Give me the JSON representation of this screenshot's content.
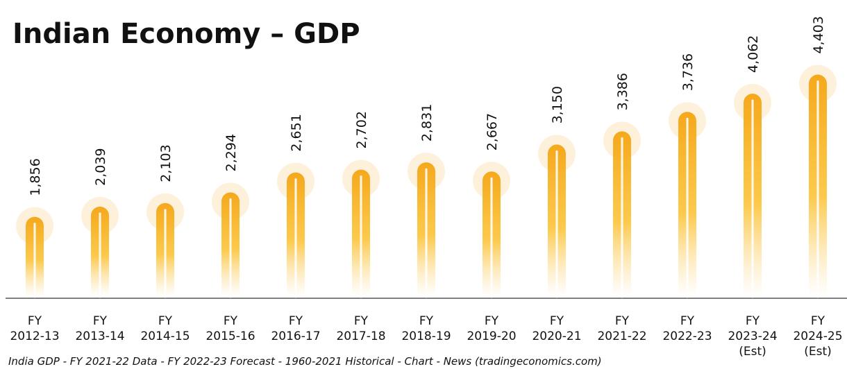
{
  "chart_data": {
    "type": "bar",
    "title": "Indian Economy – GDP",
    "categories": [
      "FY 2012-13",
      "FY 2013-14",
      "FY 2014-15",
      "FY 2015-16",
      "FY 2016-17",
      "FY 2017-18",
      "FY 2018-19",
      "FY 2019-20",
      "FY 2020-21",
      "FY 2021-22",
      "FY 2022-23",
      "FY 2023-24 (Est)",
      "FY 2024-25 (Est)"
    ],
    "values": [
      1856,
      2039,
      2103,
      2294,
      2651,
      2702,
      2831,
      2667,
      3150,
      3386,
      3736,
      4062,
      4403
    ],
    "value_labels": [
      "1,856",
      "2,039",
      "2,103",
      "2,294",
      "2,651",
      "2,702",
      "2,831",
      "2,667",
      "3,150",
      "3,386",
      "3,736",
      "4,062",
      "4,403"
    ],
    "color": "#f7b021",
    "source": "India GDP - FY 2021-22 Data - FY 2022-23 Forecast - 1960-2021 Historical - Chart - News (tradingeconomics.com)"
  }
}
